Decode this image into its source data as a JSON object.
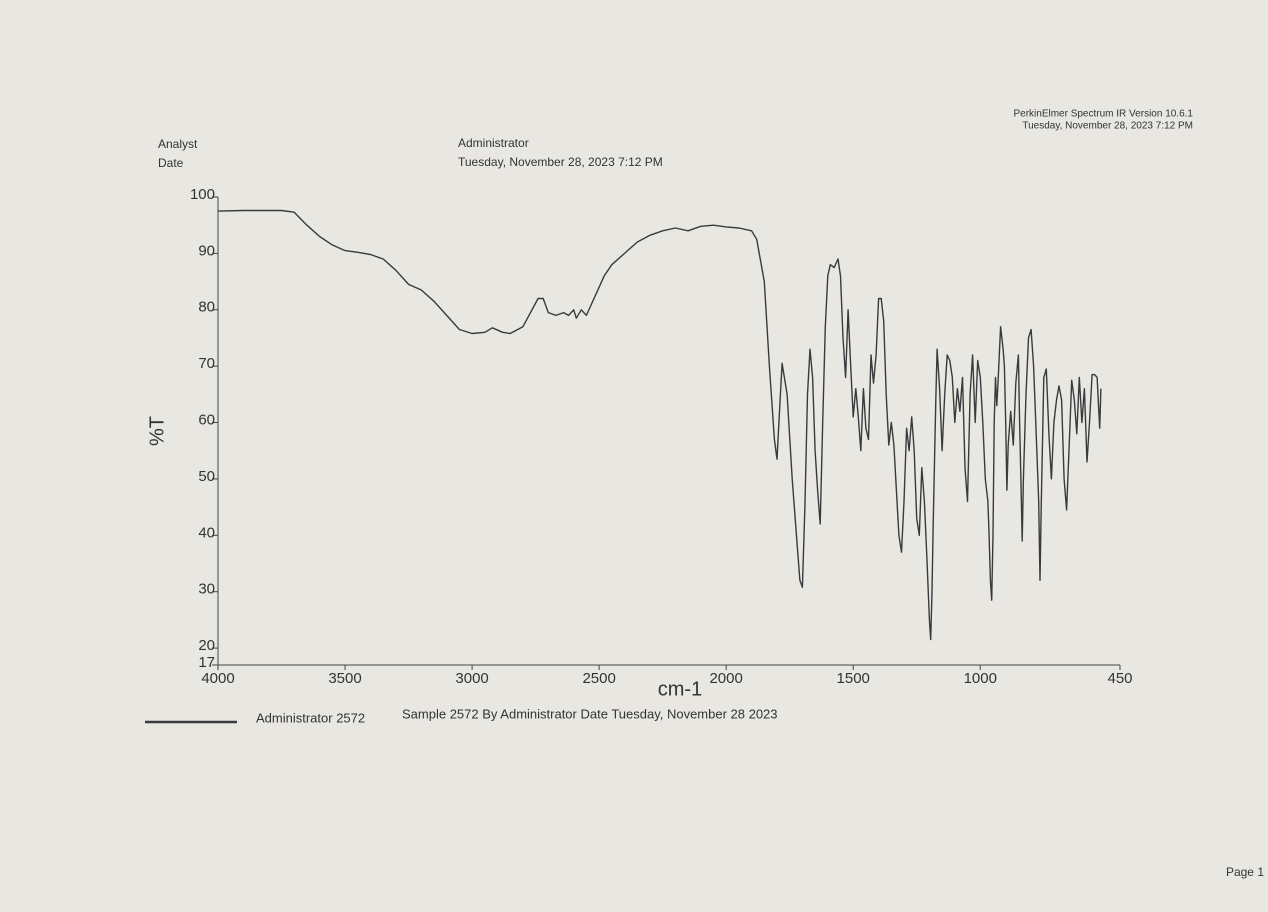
{
  "software": "PerkinElmer Spectrum IR Version 10.6.1",
  "software_date": "Tuesday, November 28, 2023 7:12 PM",
  "analyst_label": "Analyst",
  "date_label": "Date",
  "analyst": "Administrator",
  "date": "Tuesday, November 28, 2023 7:12 PM",
  "legend_description": "Sample 2572 By Administrator Date Tuesday, November 28 2023",
  "page": "Page 1",
  "chart_data": {
    "type": "line",
    "x_label": "cm-1",
    "y_label": "%T",
    "xlim": [
      4000,
      450
    ],
    "ylim": [
      17,
      100
    ],
    "xticks": [
      4000,
      3500,
      3000,
      2500,
      2000,
      1500,
      1000,
      450
    ],
    "yticks": [
      17,
      20,
      30,
      40,
      50,
      60,
      70,
      80,
      90,
      100
    ],
    "x": [
      4000,
      3900,
      3750,
      3700,
      3650,
      3600,
      3550,
      3500,
      3450,
      3400,
      3350,
      3300,
      3250,
      3200,
      3150,
      3100,
      3050,
      3000,
      2950,
      2920,
      2880,
      2850,
      2800,
      2770,
      2740,
      2720,
      2700,
      2670,
      2640,
      2620,
      2600,
      2590,
      2570,
      2550,
      2520,
      2480,
      2450,
      2400,
      2350,
      2300,
      2250,
      2200,
      2150,
      2100,
      2050,
      2000,
      1950,
      1900,
      1880,
      1850,
      1830,
      1810,
      1800,
      1790,
      1780,
      1760,
      1740,
      1720,
      1710,
      1700,
      1690,
      1680,
      1670,
      1660,
      1650,
      1640,
      1630,
      1620,
      1610,
      1600,
      1590,
      1575,
      1560,
      1550,
      1540,
      1530,
      1520,
      1510,
      1500,
      1490,
      1480,
      1470,
      1460,
      1450,
      1440,
      1430,
      1420,
      1410,
      1400,
      1390,
      1380,
      1370,
      1360,
      1350,
      1340,
      1330,
      1320,
      1310,
      1300,
      1290,
      1280,
      1270,
      1260,
      1250,
      1240,
      1230,
      1220,
      1210,
      1200,
      1195,
      1190,
      1185,
      1175,
      1170,
      1160,
      1150,
      1140,
      1130,
      1120,
      1110,
      1100,
      1090,
      1080,
      1070,
      1060,
      1050,
      1040,
      1030,
      1020,
      1010,
      1000,
      990,
      980,
      975,
      970,
      965,
      960,
      955,
      950,
      945,
      940,
      935,
      930,
      920,
      910,
      905,
      900,
      895,
      890,
      880,
      870,
      860,
      850,
      845,
      840,
      835,
      830,
      820,
      810,
      800,
      790,
      780,
      770,
      765,
      760,
      750,
      740,
      730,
      720,
      710,
      700,
      690,
      680,
      670,
      660,
      650,
      640,
      630,
      620,
      610,
      600,
      590,
      580,
      570,
      560,
      550,
      540,
      530,
      525
    ],
    "series": [
      {
        "name": "Administrator 2572",
        "color": "#3a3a3e",
        "values": [
          97.5,
          97.6,
          97.6,
          97.3,
          95,
          93,
          91.5,
          90.5,
          90.2,
          89.8,
          89,
          87,
          84.5,
          83.5,
          81.5,
          79,
          76.5,
          75.8,
          76,
          76.8,
          76,
          75.8,
          77,
          79.5,
          82,
          82,
          79.5,
          79,
          79.5,
          79,
          80,
          78.5,
          80,
          79,
          82,
          86,
          88,
          90,
          92,
          93.2,
          94,
          94.5,
          94,
          94.8,
          95,
          94.7,
          94.5,
          94,
          92.5,
          85,
          70,
          57,
          53.5,
          62,
          70.5,
          65,
          50,
          38,
          32,
          30.8,
          45,
          65,
          73,
          68,
          55,
          48,
          42,
          60,
          77,
          86,
          88,
          87.5,
          89,
          86,
          75,
          68,
          80,
          70,
          61,
          66,
          61,
          55,
          66,
          59,
          57,
          72,
          67,
          72,
          82,
          82,
          78,
          65,
          56,
          60,
          56,
          48,
          40,
          37,
          46,
          59,
          55,
          61,
          55,
          43,
          40,
          52,
          46,
          36,
          25,
          21.5,
          30,
          42,
          64,
          73,
          66,
          55,
          65,
          72,
          71,
          68,
          60,
          66,
          62,
          68,
          52,
          46,
          65,
          72,
          60,
          71,
          68,
          60,
          50,
          48,
          46,
          40,
          32,
          28.5,
          40,
          60,
          68,
          63,
          67,
          77,
          73,
          70,
          60,
          48,
          56,
          62,
          56,
          67,
          72,
          60,
          50,
          39,
          50,
          65,
          75,
          76.5,
          70,
          58,
          46,
          32,
          45,
          68,
          69.5,
          58,
          50,
          60,
          64,
          66.5,
          64,
          50,
          44.5,
          56,
          67.5,
          64,
          58,
          68,
          60,
          66,
          53,
          60,
          68.5,
          68.5,
          68,
          59,
          66
        ]
      }
    ]
  }
}
